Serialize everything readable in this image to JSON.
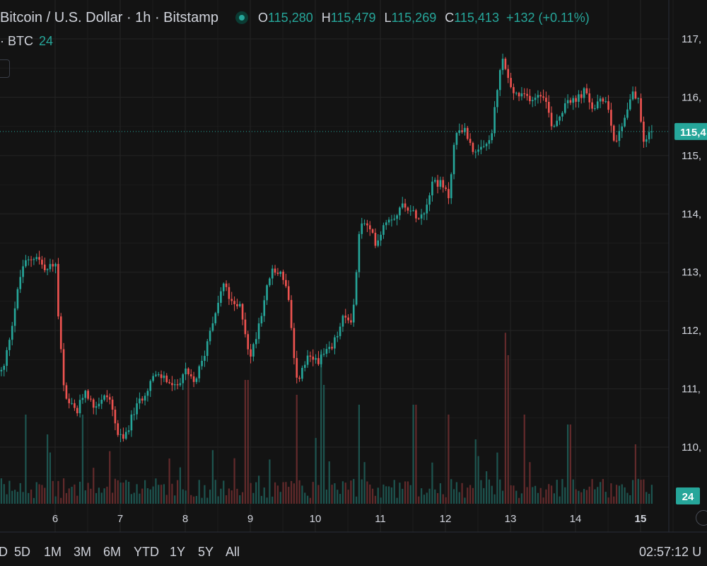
{
  "legend": {
    "title": "Bitcoin / U.S. Dollar · 1h · Bitstamp",
    "ohlc": [
      {
        "key": "O",
        "value": "115,280"
      },
      {
        "key": "H",
        "value": "115,479"
      },
      {
        "key": "L",
        "value": "115,269"
      },
      {
        "key": "C",
        "value": "115,413"
      }
    ],
    "change": "+132 (+0.11%)"
  },
  "volume_legend": {
    "label": "· BTC",
    "value": "24"
  },
  "time_ranges": [
    "D",
    "5D",
    "1M",
    "3M",
    "6M",
    "YTD",
    "1Y",
    "5Y",
    "All"
  ],
  "clock": "02:57:12 U",
  "colors": {
    "up": "#26a69a",
    "down": "#ef5350",
    "background": "#131313",
    "grid": "#242424"
  },
  "chart_data": {
    "type": "candlestick",
    "interval": "1h",
    "x_tick_labels": [
      "6",
      "7",
      "8",
      "9",
      "10",
      "11",
      "12",
      "13",
      "14",
      "15"
    ],
    "y_tick_labels": [
      "117,",
      "116,",
      "115,",
      "114,",
      "113,",
      "112,",
      "111,",
      "110,"
    ],
    "y_ticks": [
      117000,
      116000,
      115000,
      114000,
      113000,
      112000,
      111000,
      110000
    ],
    "ylim": [
      109100,
      117700
    ],
    "last_price_label": "115,4",
    "last_price": 115413,
    "volume_label": "24",
    "waypoints": [
      [
        0.3,
        111300
      ],
      [
        1.5,
        113100
      ],
      [
        2.4,
        113300
      ],
      [
        3.0,
        113000
      ],
      [
        3.6,
        113200
      ],
      [
        3.8,
        112200
      ],
      [
        4.2,
        110800
      ],
      [
        5.0,
        110600
      ],
      [
        5.5,
        111000
      ],
      [
        6.0,
        110700
      ],
      [
        7.0,
        110900
      ],
      [
        7.6,
        110200
      ],
      [
        7.9,
        110100
      ],
      [
        8.6,
        110600
      ],
      [
        9.2,
        110900
      ],
      [
        9.8,
        111200
      ],
      [
        10.5,
        111200
      ],
      [
        11.2,
        111000
      ],
      [
        11.8,
        111300
      ],
      [
        12.4,
        111100
      ],
      [
        13.0,
        111500
      ],
      [
        13.5,
        112100
      ],
      [
        14.3,
        112800
      ],
      [
        14.9,
        112400
      ],
      [
        15.4,
        112400
      ],
      [
        16.0,
        111500
      ],
      [
        16.6,
        112200
      ],
      [
        17.3,
        113000
      ],
      [
        18.0,
        113000
      ],
      [
        18.4,
        112600
      ],
      [
        18.9,
        111100
      ],
      [
        19.6,
        111500
      ],
      [
        20.4,
        111500
      ],
      [
        21.2,
        111700
      ],
      [
        21.9,
        112200
      ],
      [
        22.5,
        112200
      ],
      [
        23.0,
        113900
      ],
      [
        23.6,
        113700
      ],
      [
        24.0,
        113500
      ],
      [
        24.6,
        113900
      ],
      [
        25.3,
        114000
      ],
      [
        25.8,
        114200
      ],
      [
        26.3,
        114000
      ],
      [
        27.0,
        114000
      ],
      [
        27.6,
        114600
      ],
      [
        28.1,
        114500
      ],
      [
        28.6,
        114300
      ],
      [
        29.0,
        115300
      ],
      [
        29.4,
        115500
      ],
      [
        29.9,
        115300
      ],
      [
        30.3,
        115000
      ],
      [
        30.8,
        115100
      ],
      [
        31.3,
        115300
      ],
      [
        32.0,
        116700
      ],
      [
        32.6,
        116100
      ],
      [
        33.2,
        116000
      ],
      [
        34.0,
        116000
      ],
      [
        34.6,
        116100
      ],
      [
        35.2,
        115500
      ],
      [
        35.7,
        115700
      ],
      [
        36.1,
        116000
      ],
      [
        36.6,
        115900
      ],
      [
        37.2,
        116100
      ],
      [
        37.8,
        115800
      ],
      [
        38.6,
        116000
      ],
      [
        39.2,
        115200
      ],
      [
        39.7,
        115600
      ],
      [
        40.3,
        116100
      ],
      [
        40.7,
        115900
      ],
      [
        41.0,
        115200
      ],
      [
        41.4,
        115410
      ]
    ],
    "volume_spikes": [
      [
        1.6,
        0.18
      ],
      [
        2.9,
        0.14
      ],
      [
        5.2,
        0.18
      ],
      [
        11.9,
        0.26
      ],
      [
        15.6,
        0.25
      ],
      [
        18.8,
        0.22
      ],
      [
        20.4,
        0.24
      ],
      [
        22.7,
        0.2
      ],
      [
        26.3,
        0.2
      ],
      [
        28.4,
        0.18
      ],
      [
        30.1,
        0.13
      ],
      [
        32.1,
        0.3
      ],
      [
        33.3,
        0.18
      ],
      [
        36.1,
        0.16
      ],
      [
        40.3,
        0.12
      ]
    ]
  }
}
